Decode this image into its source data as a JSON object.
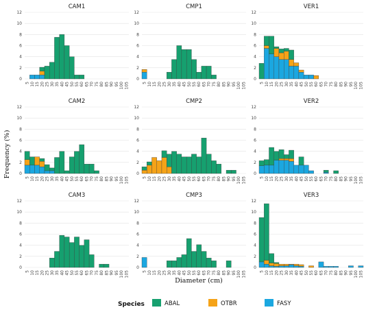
{
  "figure": {
    "xlabel": "Diameter (cm)",
    "ylabel": "Frequency (%)"
  },
  "legend": {
    "title": "Species",
    "position": "bottom",
    "entries": [
      {
        "name": "ABAL",
        "color": "#16a06f"
      },
      {
        "name": "OTBR",
        "color": "#f5a318"
      },
      {
        "name": "FASY",
        "color": "#1ba7e0"
      }
    ]
  },
  "chart_data": {
    "type": "bar",
    "stacked": true,
    "x_ticks": [
      "5",
      "10",
      "15",
      "20",
      "25",
      "30",
      "35",
      "40",
      "45",
      "50",
      "55",
      "60",
      "65",
      "70",
      "75",
      "80",
      "85",
      "90",
      "95",
      "100",
      "105"
    ],
    "ylim": [
      0,
      12
    ],
    "y_ticks": [
      0,
      2,
      4,
      6,
      8,
      10,
      12
    ],
    "grid": true,
    "panels": [
      {
        "title": "CAM1",
        "series": {
          "FASY": [
            0,
            0.7,
            0.7,
            0.7,
            0,
            0,
            0,
            0,
            0,
            0,
            0,
            0,
            0,
            0,
            0,
            0,
            0,
            0,
            0,
            0,
            0
          ],
          "OTBR": [
            0,
            0,
            0,
            0.7,
            0,
            0,
            0,
            0,
            0,
            0,
            0,
            0,
            0,
            0,
            0,
            0,
            0,
            0,
            0,
            0,
            0
          ],
          "ABAL": [
            0,
            0,
            0,
            0.7,
            2.3,
            3.0,
            7.5,
            8.0,
            6.0,
            4.0,
            0.7,
            0.7,
            0,
            0,
            0,
            0,
            0,
            0,
            0,
            0,
            0
          ]
        }
      },
      {
        "title": "CMP1",
        "series": {
          "FASY": [
            1.2,
            0,
            0,
            0,
            0,
            0,
            0,
            0,
            0,
            0,
            0,
            0,
            0,
            0,
            0,
            0,
            0,
            0,
            0,
            0,
            0
          ],
          "OTBR": [
            0.5,
            0,
            0,
            0,
            0,
            0,
            0,
            0,
            0,
            0,
            0,
            0,
            0,
            0,
            0,
            0,
            0,
            0,
            0,
            0,
            0
          ],
          "ABAL": [
            0,
            0,
            0,
            0,
            0,
            1.2,
            3.5,
            6.0,
            5.3,
            5.3,
            3.5,
            1.2,
            2.3,
            2.3,
            0.7,
            0,
            0,
            0,
            0,
            0,
            0
          ]
        }
      },
      {
        "title": "VER1",
        "series": {
          "FASY": [
            0,
            5.5,
            4.5,
            4.0,
            3.5,
            3.5,
            2.3,
            2.3,
            1.2,
            0.7,
            0.7,
            0,
            0,
            0,
            0,
            0,
            0,
            0,
            0,
            0,
            0
          ],
          "OTBR": [
            0,
            0.5,
            0,
            1.5,
            1.2,
            1.5,
            1.2,
            0.6,
            0.4,
            0,
            0,
            0.6,
            0,
            0,
            0,
            0,
            0,
            0,
            0,
            0,
            0
          ],
          "ABAL": [
            2.8,
            1.7,
            3.2,
            0.3,
            0.7,
            0.5,
            1.7,
            0,
            0,
            0,
            0,
            0,
            0,
            0,
            0,
            0,
            0,
            0,
            0,
            0,
            0
          ]
        }
      },
      {
        "title": "CAM2",
        "series": {
          "FASY": [
            1.5,
            1.5,
            1.5,
            1.2,
            0.5,
            0.5,
            0,
            0,
            0,
            0,
            0,
            0,
            0,
            0,
            0,
            0,
            0,
            0,
            0,
            0,
            0
          ],
          "OTBR": [
            1.0,
            0,
            1.5,
            1.0,
            0,
            0,
            0,
            0,
            0,
            0,
            0,
            0,
            0,
            0,
            0,
            0,
            0,
            0,
            0,
            0,
            0
          ],
          "ABAL": [
            1.5,
            1.5,
            0,
            0.5,
            1.1,
            0.5,
            2.9,
            4.0,
            0.5,
            3.0,
            4.0,
            5.2,
            1.7,
            1.7,
            0.5,
            0,
            0,
            0,
            0,
            0,
            0
          ]
        }
      },
      {
        "title": "CMP2",
        "series": {
          "FASY": [
            0,
            0,
            0,
            0,
            0,
            0,
            0,
            0,
            0,
            0,
            0,
            0,
            0,
            0,
            0,
            0,
            0,
            0,
            0,
            0,
            0
          ],
          "OTBR": [
            0.6,
            1.5,
            2.9,
            2.3,
            2.9,
            1.2,
            0,
            0,
            0,
            0,
            0,
            0,
            0,
            0,
            0,
            0,
            0,
            0,
            0,
            0,
            0
          ],
          "ABAL": [
            0.6,
            0.6,
            0,
            0,
            1.2,
            2.3,
            4.0,
            3.5,
            3.0,
            3.0,
            3.5,
            3.0,
            6.4,
            3.5,
            2.3,
            1.7,
            0,
            0.6,
            0.6,
            0,
            0
          ]
        }
      },
      {
        "title": "VER2",
        "series": {
          "FASY": [
            1.4,
            1.5,
            1.5,
            2.4,
            2.4,
            2.4,
            2.2,
            1.5,
            1.5,
            1.5,
            0.5,
            0,
            0,
            0.2,
            0,
            0,
            0,
            0,
            0,
            0,
            0
          ],
          "OTBR": [
            0,
            0,
            0,
            0,
            0.3,
            0.3,
            0.5,
            0,
            0,
            0,
            0,
            0,
            0,
            0,
            0,
            0,
            0,
            0,
            0,
            0,
            0
          ],
          "ABAL": [
            0.9,
            1.0,
            3.2,
            1.6,
            1.6,
            0.7,
            1.5,
            0,
            1.5,
            0,
            0,
            0,
            0,
            0.4,
            0,
            0.5,
            0,
            0,
            0,
            0,
            0
          ]
        }
      },
      {
        "title": "CAM3",
        "series": {
          "FASY": [
            0,
            0,
            0,
            0,
            0,
            0,
            0,
            0,
            0,
            0,
            0,
            0,
            0,
            0,
            0,
            0,
            0,
            0,
            0,
            0,
            0
          ],
          "OTBR": [
            0,
            0,
            0,
            0,
            0,
            0,
            0,
            0,
            0,
            0,
            0,
            0,
            0,
            0,
            0,
            0,
            0,
            0,
            0,
            0,
            0
          ],
          "ABAL": [
            0,
            0,
            0,
            0,
            0,
            1.7,
            2.9,
            5.8,
            5.5,
            4.5,
            5.5,
            4.0,
            5.0,
            2.3,
            0,
            0.6,
            0.6,
            0,
            0,
            0,
            0
          ]
        }
      },
      {
        "title": "CMP3",
        "series": {
          "FASY": [
            1.8,
            0,
            0,
            0,
            0,
            0,
            0,
            0,
            0,
            0,
            0,
            0,
            0,
            0,
            0,
            0,
            0,
            0,
            0,
            0,
            0
          ],
          "OTBR": [
            0,
            0,
            0,
            0,
            0,
            0,
            0,
            0,
            0,
            0,
            0,
            0,
            0,
            0,
            0,
            0,
            0,
            0,
            0,
            0,
            0
          ],
          "ABAL": [
            0,
            0,
            0,
            0,
            0,
            1.2,
            1.2,
            1.8,
            2.3,
            5.2,
            2.9,
            4.1,
            2.9,
            1.7,
            1.2,
            0,
            0,
            1.2,
            0,
            0,
            0
          ]
        }
      },
      {
        "title": "VER3",
        "series": {
          "FASY": [
            1.0,
            0.6,
            0.3,
            0.2,
            0.3,
            0.3,
            0.5,
            0.3,
            0.2,
            0,
            0,
            0,
            1.0,
            0.2,
            0.2,
            0.2,
            0,
            0,
            0.3,
            0,
            0.3
          ],
          "OTBR": [
            0,
            0.7,
            0.5,
            0.5,
            0.3,
            0.3,
            0.1,
            0.3,
            0.3,
            0,
            0.3,
            0,
            0,
            0,
            0,
            0,
            0,
            0,
            0,
            0,
            0
          ],
          "ABAL": [
            8.0,
            10.2,
            1.7,
            0.2,
            0,
            0,
            0,
            0,
            0,
            0,
            0,
            0,
            0,
            0,
            0,
            0,
            0,
            0,
            0,
            0,
            0
          ]
        }
      }
    ]
  }
}
